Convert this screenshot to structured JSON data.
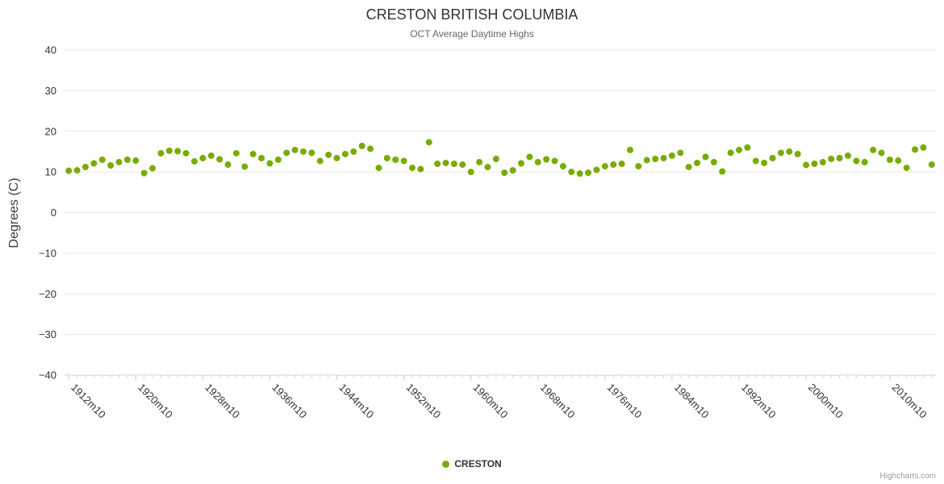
{
  "credits": "Highcharts.com",
  "legend": {
    "label": "CRESTON"
  },
  "chart_data": {
    "type": "scatter",
    "title": "CRESTON BRITISH COLUMBIA",
    "subtitle": "OCT Average Daytime Highs",
    "ylabel": "Degrees (C)",
    "xlabel": "",
    "ylim": [
      -40,
      40
    ],
    "grid": "horizontal-only",
    "legend_position": "bottom-center",
    "colors": {
      "series": "#77ac00",
      "grid": "#e6e6e6",
      "axis_line": "#ccd6eb",
      "tick": "#cccccc",
      "axis_label": "#333333"
    },
    "y_tick_values": [
      40,
      30,
      20,
      10,
      0,
      -10,
      -20,
      -30,
      -40
    ],
    "y_tick_labels": [
      "40",
      "30",
      "20",
      "10",
      "0",
      "−10",
      "−20",
      "−30",
      "−40"
    ],
    "x_tick_labels": [
      "1912m10",
      "1920m10",
      "1928m10",
      "1936m10",
      "1944m10",
      "1952m10",
      "1960m10",
      "1968m10",
      "1976m10",
      "1984m10",
      "1992m10",
      "2000m10",
      "2010m10"
    ],
    "categories": [
      "1912m10",
      "1913m10",
      "1914m10",
      "1915m10",
      "1916m10",
      "1917m10",
      "1918m10",
      "1919m10",
      "1920m10",
      "1921m10",
      "1922m10",
      "1923m10",
      "1924m10",
      "1925m10",
      "1926m10",
      "1927m10",
      "1928m10",
      "1929m10",
      "1930m10",
      "1931m10",
      "1932m10",
      "1933m10",
      "1934m10",
      "1935m10",
      "1936m10",
      "1937m10",
      "1938m10",
      "1939m10",
      "1940m10",
      "1941m10",
      "1942m10",
      "1943m10",
      "1944m10",
      "1945m10",
      "1946m10",
      "1947m10",
      "1948m10",
      "1949m10",
      "1950m10",
      "1951m10",
      "1952m10",
      "1953m10",
      "1954m10",
      "1955m10",
      "1956m10",
      "1957m10",
      "1958m10",
      "1959m10",
      "1960m10",
      "1961m10",
      "1962m10",
      "1963m10",
      "1964m10",
      "1965m10",
      "1966m10",
      "1967m10",
      "1968m10",
      "1969m10",
      "1970m10",
      "1971m10",
      "1972m10",
      "1973m10",
      "1974m10",
      "1975m10",
      "1976m10",
      "1977m10",
      "1978m10",
      "1979m10",
      "1980m10",
      "1981m10",
      "1982m10",
      "1983m10",
      "1984m10",
      "1985m10",
      "1986m10",
      "1987m10",
      "1988m10",
      "1989m10",
      "1990m10",
      "1991m10",
      "1992m10",
      "1993m10",
      "1994m10",
      "1995m10",
      "1996m10",
      "1997m10",
      "1998m10",
      "1999m10",
      "2000m10",
      "2001m10",
      "2002m10",
      "2003m10",
      "2004m10",
      "2005m10",
      "2006m10",
      "2007m10",
      "2008m10",
      "2009m10",
      "2010m10",
      "2011m10",
      "2012m10",
      "2013m10",
      "2014m10",
      "2015m10"
    ],
    "series": [
      {
        "name": "CRESTON",
        "color": "#77ac00",
        "values": [
          10.3,
          10.4,
          11.2,
          12.1,
          13.0,
          11.6,
          12.4,
          13.0,
          12.8,
          9.7,
          10.9,
          14.6,
          15.2,
          15.1,
          14.6,
          12.6,
          13.4,
          14.0,
          13.1,
          11.8,
          14.6,
          11.3,
          14.4,
          13.4,
          12.1,
          13.0,
          14.7,
          15.4,
          15.0,
          14.7,
          12.7,
          14.2,
          13.4,
          14.4,
          15.0,
          16.4,
          15.7,
          11.0,
          13.4,
          13.0,
          12.7,
          11.0,
          10.7,
          17.3,
          12.0,
          12.2,
          12.0,
          11.8,
          10.0,
          12.4,
          11.2,
          13.2,
          9.8,
          10.4,
          12.1,
          13.7,
          12.4,
          13.1,
          12.7,
          11.4,
          10.0,
          9.6,
          9.8,
          10.5,
          11.4,
          11.8,
          12.0,
          15.4,
          11.4,
          12.9,
          13.2,
          13.4,
          14.0,
          14.7,
          11.2,
          12.2,
          13.7,
          12.4,
          10.1,
          14.7,
          15.4,
          16.0,
          12.7,
          12.2,
          13.4,
          14.7,
          15.0,
          14.4,
          11.7,
          12.0,
          12.4,
          13.2,
          13.4,
          14.0,
          12.7,
          12.4,
          15.4,
          14.7,
          13.0,
          12.8,
          11.0,
          15.5,
          16.0,
          11.8
        ]
      }
    ]
  }
}
